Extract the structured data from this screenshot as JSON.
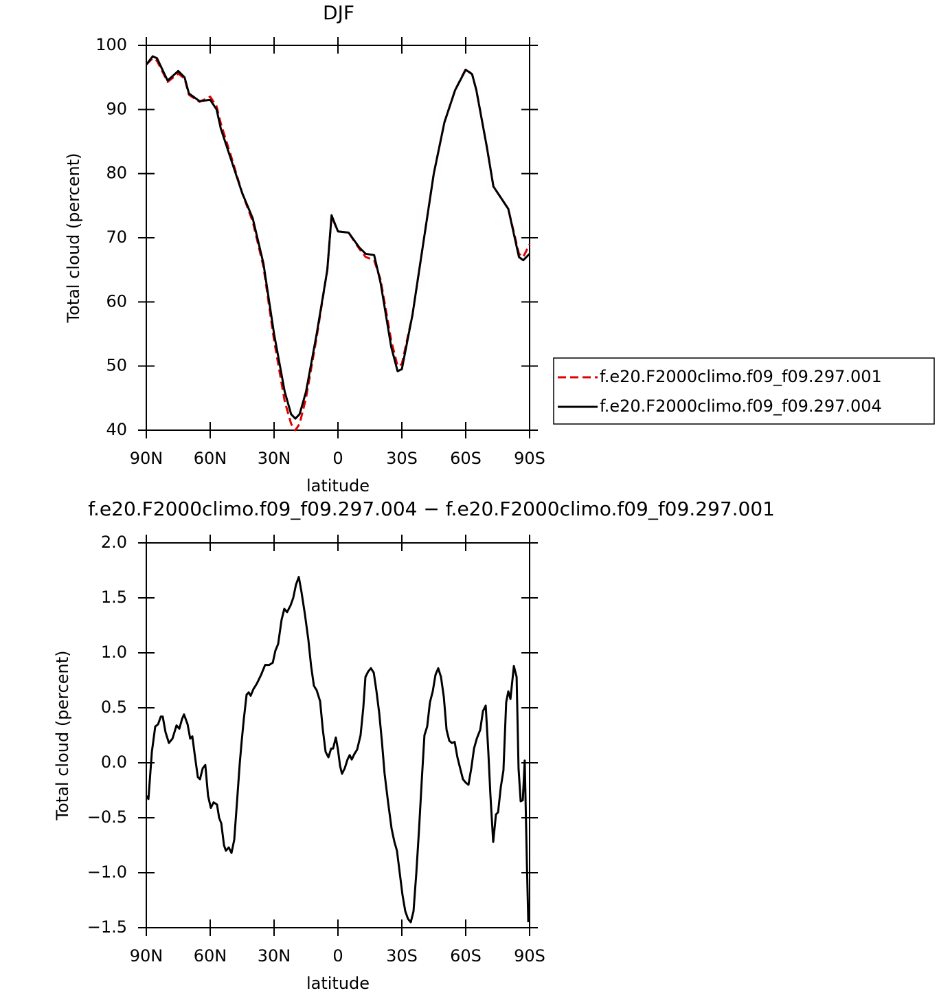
{
  "chart_data": [
    {
      "type": "line",
      "title": "DJF",
      "xlabel": "latitude",
      "ylabel": "Total cloud (percent)",
      "xlim": [
        90,
        -90
      ],
      "ylim": [
        40,
        100
      ],
      "xticks": [
        {
          "value": 90,
          "label": "90N"
        },
        {
          "value": 60,
          "label": "60N"
        },
        {
          "value": 30,
          "label": "30N"
        },
        0,
        {
          "value": -30,
          "label": "30S"
        },
        {
          "value": -60,
          "label": "60S"
        },
        {
          "value": -90,
          "label": "90S"
        }
      ],
      "yticks": [
        40,
        50,
        60,
        70,
        80,
        90,
        100
      ],
      "legend": "right",
      "x": [
        90,
        87,
        85,
        80,
        75,
        72,
        70,
        65,
        60,
        57,
        55,
        50,
        45,
        40,
        35,
        30,
        25,
        22,
        20,
        18,
        15,
        10,
        5,
        3,
        0,
        -5,
        -10,
        -13,
        -17,
        -20,
        -25,
        -28,
        -30,
        -35,
        -40,
        -45,
        -50,
        -55,
        -60,
        -63,
        -65,
        -70,
        -73,
        -75,
        -80,
        -85,
        -87,
        -90
      ],
      "series": [
        {
          "name": "f.e20.F2000climo.f09_f09.297.001",
          "color": "#e00000",
          "dash": true,
          "values": [
            97,
            98,
            97.6,
            94.3,
            95.6,
            94.8,
            92.3,
            91.2,
            92,
            90.5,
            87.8,
            82.5,
            77,
            72.5,
            65.5,
            54,
            44.5,
            41,
            40,
            41,
            45,
            54.5,
            65,
            73.3,
            71,
            70.8,
            68.3,
            67,
            66.5,
            63.5,
            54,
            50,
            50.3,
            58,
            69,
            80,
            88,
            93,
            96.3,
            95.5,
            93,
            84,
            78,
            77,
            74.5,
            67.5,
            67,
            69
          ]
        },
        {
          "name": "f.e20.F2000climo.f09_f09.297.004",
          "color": "#000000",
          "dash": false,
          "values": [
            97,
            98.3,
            98,
            94.5,
            96,
            95,
            92.5,
            91.3,
            91.5,
            90,
            87,
            82,
            77,
            73,
            66,
            55,
            46,
            42.5,
            41.8,
            42.5,
            46,
            55,
            65,
            73.5,
            71,
            70.8,
            68.5,
            67.5,
            67.3,
            63,
            53,
            49.2,
            49.5,
            58,
            69,
            80,
            88,
            93,
            96.2,
            95.5,
            93,
            84,
            78,
            77,
            74.5,
            67,
            66.5,
            67.5
          ]
        }
      ]
    },
    {
      "type": "line",
      "title": "f.e20.F2000climo.f09_f09.297.004 − f.e20.F2000climo.f09_f09.297.001",
      "xlabel": "latitude",
      "ylabel": "Total cloud (percent)",
      "xlim": [
        90,
        -90
      ],
      "ylim": [
        -1.5,
        2
      ],
      "xticks": [
        {
          "value": 90,
          "label": "90N"
        },
        {
          "value": 60,
          "label": "60N"
        },
        {
          "value": 30,
          "label": "30N"
        },
        0,
        {
          "value": -30,
          "label": "30S"
        },
        {
          "value": -60,
          "label": "60S"
        },
        {
          "value": -90,
          "label": "90S"
        }
      ],
      "yticks": [
        {
          "value": -1.5,
          "label": "−1.5"
        },
        {
          "value": -1,
          "label": "−1.0"
        },
        {
          "value": -0.5,
          "label": "−0.5"
        },
        {
          "value": 0,
          "label": "0.0"
        },
        0.5,
        {
          "value": 1,
          "label": "1.0"
        },
        1.5,
        {
          "value": 2,
          "label": "2.0"
        }
      ],
      "color": "#000000",
      "x": [
        90,
        89.0,
        87.4,
        85.8,
        84.5,
        83.2,
        82.3,
        81.0,
        79.4,
        77.7,
        75.8,
        74.5,
        73.2,
        72.3,
        70.6,
        69.4,
        68.4,
        67.1,
        65.8,
        64.8,
        63.5,
        62.3,
        61.0,
        59.7,
        58.4,
        56.8,
        55.8,
        54.8,
        53.5,
        52.6,
        51.3,
        50.0,
        48.7,
        47.4,
        46.1,
        45.2,
        44.2,
        42.9,
        41.9,
        41.0,
        39.7,
        38.1,
        36.1,
        34.2,
        32.3,
        30.6,
        29.4,
        28.1,
        26.5,
        25.2,
        23.9,
        22.3,
        21.0,
        19.7,
        18.4,
        17.1,
        15.5,
        13.9,
        12.6,
        11.3,
        10.0,
        8.4,
        7.1,
        5.8,
        4.5,
        3.2,
        2.3,
        1.0,
        0.0,
        -1.0,
        -1.9,
        -3.2,
        -4.5,
        -5.5,
        -6.5,
        -7.7,
        -9.0,
        -10.6,
        -11.9,
        -12.9,
        -14.2,
        -15.5,
        -16.8,
        -18.1,
        -19.4,
        -20.6,
        -21.9,
        -23.5,
        -25.2,
        -26.5,
        -27.7,
        -29.0,
        -30.3,
        -31.6,
        -32.9,
        -34.2,
        -35.5,
        -36.8,
        -38.1,
        -39.4,
        -40.6,
        -41.9,
        -43.2,
        -44.5,
        -45.8,
        -47.1,
        -48.4,
        -49.7,
        -51.0,
        -52.3,
        -53.5,
        -54.8,
        -56.1,
        -57.4,
        -58.7,
        -60.0,
        -61.3,
        -62.6,
        -63.9,
        -65.2,
        -66.8,
        -68.1,
        -69.4,
        -70.6,
        -71.6,
        -72.9,
        -74.2,
        -75.2,
        -76.5,
        -77.7,
        -79.0,
        -80.0,
        -81.0,
        -82.6,
        -83.9,
        -84.8,
        -85.8,
        -86.8,
        -87.7,
        -88.7,
        -89.4
      ],
      "values": [
        -0.3,
        -0.33,
        0.1,
        0.33,
        0.35,
        0.42,
        0.42,
        0.28,
        0.18,
        0.22,
        0.34,
        0.31,
        0.4,
        0.44,
        0.35,
        0.22,
        0.24,
        0.05,
        -0.13,
        -0.15,
        -0.05,
        -0.02,
        -0.3,
        -0.41,
        -0.36,
        -0.38,
        -0.5,
        -0.55,
        -0.75,
        -0.8,
        -0.77,
        -0.82,
        -0.7,
        -0.35,
        0.0,
        0.2,
        0.4,
        0.62,
        0.64,
        0.61,
        0.67,
        0.72,
        0.8,
        0.89,
        0.89,
        0.91,
        1.02,
        1.08,
        1.3,
        1.4,
        1.37,
        1.43,
        1.5,
        1.62,
        1.69,
        1.55,
        1.35,
        1.12,
        0.88,
        0.7,
        0.66,
        0.56,
        0.3,
        0.1,
        0.05,
        0.13,
        0.13,
        0.23,
        0.12,
        -0.03,
        -0.1,
        -0.05,
        0.03,
        0.07,
        0.03,
        0.08,
        0.12,
        0.25,
        0.5,
        0.78,
        0.83,
        0.86,
        0.82,
        0.65,
        0.45,
        0.2,
        -0.1,
        -0.35,
        -0.6,
        -0.72,
        -0.8,
        -1.0,
        -1.2,
        -1.35,
        -1.42,
        -1.45,
        -1.35,
        -1.0,
        -0.6,
        -0.15,
        0.25,
        0.33,
        0.55,
        0.65,
        0.8,
        0.86,
        0.78,
        0.6,
        0.3,
        0.2,
        0.18,
        0.19,
        0.05,
        -0.05,
        -0.15,
        -0.18,
        -0.2,
        -0.05,
        0.13,
        0.22,
        0.3,
        0.47,
        0.52,
        0.1,
        -0.3,
        -0.72,
        -0.47,
        -0.45,
        -0.22,
        -0.07,
        0.55,
        0.65,
        0.58,
        0.88,
        0.78,
        -0.05,
        -0.35,
        -0.34,
        0.02,
        -0.9,
        -1.45
      ]
    }
  ]
}
